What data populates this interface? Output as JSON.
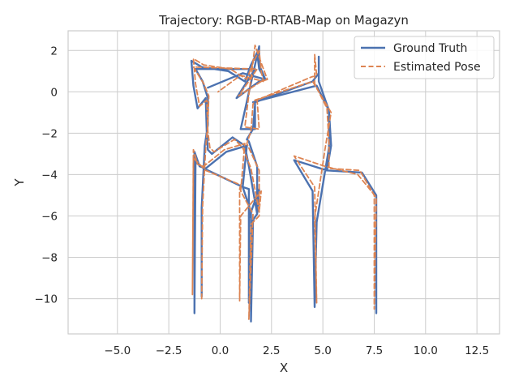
{
  "chart_data": {
    "type": "line",
    "title": "Trajectory: RGB-D-RTAB-Map on Magazyn",
    "xlabel": "X",
    "ylabel": "Y",
    "xlim": [
      -7.4,
      13.6
    ],
    "ylim": [
      -11.7,
      2.95
    ],
    "x_ticks": [
      -5.0,
      -2.5,
      0.0,
      2.5,
      5.0,
      7.5,
      10.0,
      12.5
    ],
    "x_tick_labels": [
      "−5.0",
      "−2.5",
      "0.0",
      "2.5",
      "5.0",
      "7.5",
      "10.0",
      "12.5"
    ],
    "y_ticks": [
      2,
      0,
      -2,
      -4,
      -6,
      -8,
      -10
    ],
    "y_tick_labels": [
      "2",
      "0",
      "−2",
      "−4",
      "−6",
      "−8",
      "−10"
    ],
    "grid": true,
    "legend_position": "top-right",
    "series": [
      {
        "name": "Ground Truth",
        "color": "#4c72b0",
        "style": "solid",
        "points": [
          [
            -0.9,
            -9.9
          ],
          [
            -0.9,
            -5.6
          ],
          [
            -0.75,
            -2.6
          ],
          [
            -0.6,
            -1.6
          ],
          [
            -0.6,
            -0.3
          ],
          [
            -0.85,
            0.5
          ],
          [
            -1.2,
            1.1
          ],
          [
            1.7,
            1.1
          ],
          [
            0.8,
            -0.3
          ],
          [
            1.9,
            0.5
          ],
          [
            2.2,
            0.6
          ],
          [
            1.9,
            1.3
          ],
          [
            1.9,
            2.2
          ],
          [
            1.0,
            -1.8
          ],
          [
            1.7,
            -1.8
          ],
          [
            1.7,
            -0.5
          ],
          [
            4.5,
            0.5
          ],
          [
            4.8,
            0.9
          ],
          [
            4.8,
            1.7
          ],
          [
            4.8,
            0.5
          ],
          [
            5.3,
            -0.9
          ],
          [
            5.4,
            -2.6
          ],
          [
            5.2,
            -3.8
          ],
          [
            6.9,
            -3.9
          ],
          [
            7.6,
            -5.0
          ],
          [
            7.6,
            -10.7
          ],
          [
            7.6,
            -5.0
          ],
          [
            6.9,
            -3.9
          ],
          [
            5.2,
            -3.8
          ],
          [
            3.6,
            -3.3
          ],
          [
            4.5,
            -4.8
          ],
          [
            4.6,
            -10.4
          ],
          [
            4.7,
            -6.3
          ],
          [
            5.3,
            -2.7
          ],
          [
            5.3,
            -0.9
          ],
          [
            4.7,
            0.3
          ],
          [
            1.6,
            -0.5
          ],
          [
            1.7,
            -0.6
          ],
          [
            1.6,
            -1.8
          ],
          [
            1.3,
            -2.3
          ],
          [
            1.4,
            -2.4
          ],
          [
            1.8,
            -3.6
          ],
          [
            1.8,
            -5.9
          ],
          [
            1.6,
            -6.2
          ],
          [
            1.5,
            -11.1
          ],
          [
            1.5,
            -5.8
          ],
          [
            1.1,
            -4.6
          ],
          [
            1.3,
            -2.6
          ],
          [
            0.3,
            -2.9
          ],
          [
            -0.2,
            -3.3
          ],
          [
            -0.7,
            -3.7
          ],
          [
            -1.0,
            -3.6
          ],
          [
            -1.25,
            -2.9
          ],
          [
            -1.25,
            -10.7
          ],
          [
            -1.2,
            -3.4
          ],
          [
            -0.8,
            -3.7
          ],
          [
            1.1,
            -4.6
          ],
          [
            1.4,
            -4.7
          ],
          [
            1.4,
            -10.2
          ],
          [
            1.4,
            -6.1
          ],
          [
            1.9,
            -4.7
          ],
          [
            1.8,
            -5.9
          ],
          [
            1.4,
            -3.6
          ],
          [
            1.2,
            -2.6
          ],
          [
            0.6,
            -2.2
          ],
          [
            -0.4,
            -3.0
          ],
          [
            -0.6,
            -2.8
          ],
          [
            -0.65,
            -2.0
          ],
          [
            -0.7,
            -0.3
          ],
          [
            -1.1,
            -0.8
          ],
          [
            -1.3,
            0.3
          ],
          [
            -1.4,
            1.5
          ],
          [
            -0.9,
            1.2
          ],
          [
            0.4,
            1.0
          ],
          [
            1.2,
            0.5
          ],
          [
            1.5,
            1.3
          ],
          [
            1.8,
            1.9
          ],
          [
            1.9,
            1.1
          ],
          [
            2.2,
            0.6
          ],
          [
            1.1,
            0.9
          ],
          [
            -0.6,
            0.2
          ]
        ]
      },
      {
        "name": "Estimated Pose",
        "color": "#dd8452",
        "style": "dashed",
        "points": [
          [
            -0.9,
            -10.0
          ],
          [
            -0.85,
            -5.5
          ],
          [
            -0.7,
            -2.7
          ],
          [
            -0.6,
            -1.5
          ],
          [
            -0.55,
            -0.2
          ],
          [
            -0.8,
            0.4
          ],
          [
            -1.3,
            1.2
          ],
          [
            1.8,
            1.1
          ],
          [
            0.9,
            -0.2
          ],
          [
            2.0,
            0.5
          ],
          [
            2.3,
            0.6
          ],
          [
            2.0,
            1.4
          ],
          [
            1.7,
            2.25
          ],
          [
            1.2,
            -1.7
          ],
          [
            1.9,
            -1.8
          ],
          [
            1.8,
            -0.4
          ],
          [
            4.4,
            0.7
          ],
          [
            4.7,
            0.8
          ],
          [
            4.6,
            1.8
          ],
          [
            4.6,
            0.4
          ],
          [
            5.2,
            -0.8
          ],
          [
            5.3,
            -2.5
          ],
          [
            5.3,
            -3.7
          ],
          [
            6.8,
            -3.8
          ],
          [
            7.5,
            -5.0
          ],
          [
            7.5,
            -10.5
          ],
          [
            7.6,
            -5.1
          ],
          [
            6.7,
            -4.0
          ],
          [
            5.1,
            -3.6
          ],
          [
            3.6,
            -3.1
          ],
          [
            4.6,
            -4.6
          ],
          [
            4.7,
            -10.2
          ],
          [
            4.6,
            -6.1
          ],
          [
            5.1,
            -2.8
          ],
          [
            5.4,
            -1.0
          ],
          [
            4.5,
            0.5
          ],
          [
            1.7,
            -0.4
          ],
          [
            1.6,
            -0.6
          ],
          [
            1.5,
            -1.9
          ],
          [
            1.4,
            -2.2
          ],
          [
            1.3,
            -2.5
          ],
          [
            1.9,
            -3.8
          ],
          [
            1.9,
            -6.0
          ],
          [
            1.5,
            -6.4
          ],
          [
            1.4,
            -11.0
          ],
          [
            1.6,
            -5.9
          ],
          [
            1.0,
            -4.8
          ],
          [
            1.2,
            -2.5
          ],
          [
            0.2,
            -2.8
          ],
          [
            -0.3,
            -3.2
          ],
          [
            -0.8,
            -3.6
          ],
          [
            -1.1,
            -3.5
          ],
          [
            -1.3,
            -2.8
          ],
          [
            -1.35,
            -9.8
          ],
          [
            -1.3,
            -3.2
          ],
          [
            -0.7,
            -3.8
          ],
          [
            1.0,
            -4.5
          ],
          [
            0.95,
            -4.7
          ],
          [
            0.95,
            -10.1
          ],
          [
            1.0,
            -6.0
          ],
          [
            2.0,
            -4.8
          ],
          [
            1.9,
            -5.8
          ],
          [
            1.5,
            -3.7
          ],
          [
            1.1,
            -2.7
          ],
          [
            0.7,
            -2.3
          ],
          [
            -0.3,
            -2.9
          ],
          [
            -0.5,
            -2.7
          ],
          [
            -0.6,
            -1.9
          ],
          [
            -0.65,
            -0.4
          ],
          [
            -1.0,
            -0.7
          ],
          [
            -1.2,
            0.4
          ],
          [
            -1.3,
            1.6
          ],
          [
            -0.8,
            1.3
          ],
          [
            0.5,
            1.1
          ],
          [
            1.3,
            0.6
          ],
          [
            1.6,
            1.4
          ],
          [
            1.9,
            2.0
          ],
          [
            2.0,
            1.0
          ],
          [
            2.1,
            0.5
          ],
          [
            1.0,
            0.8
          ],
          [
            -0.1,
            0.0
          ]
        ]
      }
    ]
  }
}
